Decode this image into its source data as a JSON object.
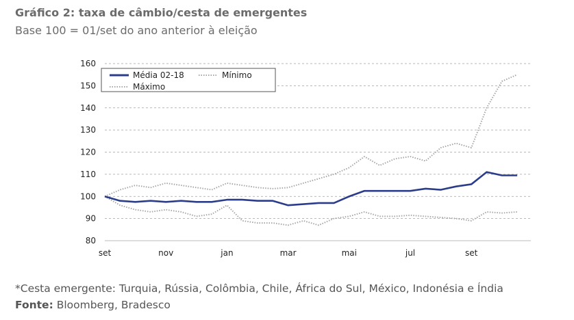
{
  "chart_data": {
    "type": "line",
    "title": "Gráfico 2: taxa de câmbio/cesta de emergentes",
    "subtitle": "Base 100 = 01/set do ano anterior à eleição",
    "footnote": "*Cesta emergente: Turquia, Rússia, Colômbia, Chile, África do Sul, México, Indonésia e Índia",
    "source_label": "Fonte:",
    "source": "Bloomberg, Bradesco",
    "categories": [
      "set",
      null,
      null,
      null,
      "nov",
      null,
      null,
      null,
      "jan",
      null,
      null,
      null,
      "mar",
      null,
      null,
      null,
      "mai",
      null,
      null,
      null,
      "jul",
      null,
      null,
      null,
      "set",
      null,
      null,
      null
    ],
    "series": [
      {
        "name": "Média 02-18",
        "color": "#2b3d8a",
        "style": "solid",
        "values": [
          100,
          98,
          97.5,
          98,
          97.5,
          98,
          97.5,
          97.5,
          98.5,
          98.5,
          98,
          98,
          96,
          96.5,
          97,
          97,
          100,
          102.5,
          102.5,
          102.5,
          102.5,
          103.5,
          103,
          104.5,
          105.5,
          111,
          109.5,
          109.5
        ]
      },
      {
        "name": "Mínimo",
        "color": "#a6a6a6",
        "style": "dotted",
        "values": [
          100,
          96,
          94,
          93,
          94,
          93,
          91,
          92,
          96,
          89,
          88,
          88,
          87,
          89,
          87,
          90,
          91,
          93,
          91,
          91,
          91.5,
          91,
          90.5,
          90,
          89,
          93,
          92.5,
          93
        ]
      },
      {
        "name": "Máximo",
        "color": "#a6a6a6",
        "style": "dotted",
        "values": [
          100,
          103,
          105,
          104,
          106,
          105,
          104,
          103,
          106,
          105,
          104,
          103.5,
          104,
          106,
          108,
          110,
          113,
          118,
          114,
          117,
          118,
          116,
          122,
          124,
          122,
          140,
          152,
          155
        ]
      }
    ],
    "ylim": [
      80,
      160
    ],
    "yticks": [
      80,
      90,
      100,
      110,
      120,
      130,
      140,
      150,
      160
    ],
    "grid": true
  }
}
